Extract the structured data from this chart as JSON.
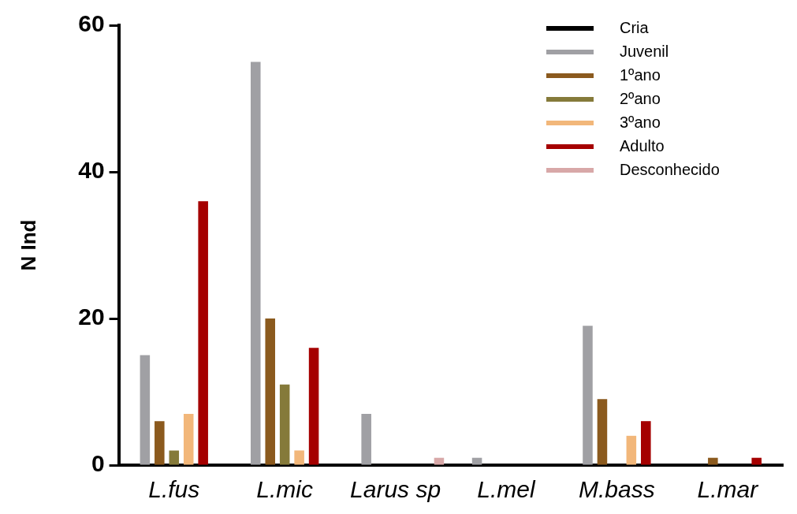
{
  "chart_data": {
    "type": "bar",
    "ylabel": "N Ind",
    "categories": [
      "L.fus",
      "L.mic",
      "Larus sp",
      "L.mel",
      "M.bass",
      "L.mar"
    ],
    "series": [
      {
        "name": "Cria",
        "color": "#000000",
        "values": [
          0,
          0,
          0,
          0,
          0,
          0
        ]
      },
      {
        "name": "Juvenil",
        "color": "#a0a0a4",
        "values": [
          15,
          55,
          7,
          1,
          19,
          0
        ]
      },
      {
        "name": "1ºano",
        "color": "#8b5a1e",
        "values": [
          6,
          20,
          0,
          0,
          9,
          1
        ]
      },
      {
        "name": "2ºano",
        "color": "#857a3a",
        "values": [
          2,
          11,
          0,
          0,
          0,
          0
        ]
      },
      {
        "name": "3ºano",
        "color": "#f2b77a",
        "values": [
          7,
          2,
          0,
          0,
          4,
          0
        ]
      },
      {
        "name": "Adulto",
        "color": "#a50000",
        "values": [
          36,
          16,
          0,
          0,
          6,
          1
        ]
      },
      {
        "name": "Desconhecido",
        "color": "#d8a8a8",
        "values": [
          0,
          0,
          1,
          0,
          0,
          0
        ]
      }
    ],
    "ylim": [
      0,
      60
    ],
    "yticks": [
      0,
      20,
      40,
      60
    ],
    "grid": false,
    "legend": "top right"
  }
}
